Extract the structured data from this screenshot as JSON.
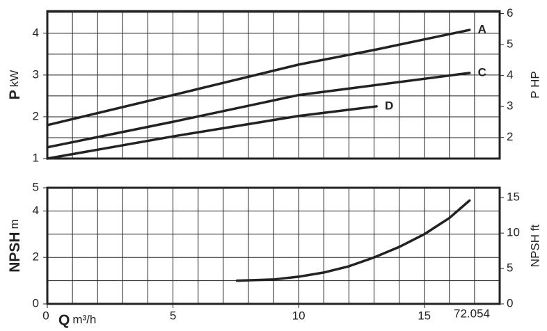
{
  "chart_data": [
    {
      "type": "line",
      "ylabel": {
        "main": "P",
        "unit": "kW"
      },
      "y2label": "P HP",
      "xlim": [
        0,
        18
      ],
      "xgrid": [
        1,
        2,
        3,
        4,
        5,
        6,
        7,
        8,
        9,
        10,
        11,
        12,
        13,
        14,
        15,
        16,
        17
      ],
      "ylim": [
        1,
        4.53
      ],
      "yticks": [
        1,
        2,
        3,
        4
      ],
      "ygrid": [
        1.5,
        2,
        2.5,
        3,
        3.5,
        4,
        4.5
      ],
      "y2lim": [
        1.32,
        6.08
      ],
      "y2ticks": [
        2,
        3,
        4,
        5,
        6
      ],
      "color": "#222222",
      "series": [
        {
          "name": "A",
          "x": [
            0,
            5,
            10,
            13,
            16.8
          ],
          "values": [
            1.8,
            2.52,
            3.25,
            3.6,
            4.08
          ]
        },
        {
          "name": "C",
          "x": [
            0,
            5,
            10,
            16.8
          ],
          "values": [
            1.27,
            1.88,
            2.52,
            3.05
          ]
        },
        {
          "name": "D",
          "x": [
            0,
            5,
            10,
            13.1
          ],
          "values": [
            1.0,
            1.53,
            2.02,
            2.25
          ]
        }
      ]
    },
    {
      "type": "line",
      "ylabel": {
        "main": "NPSH",
        "unit": "m"
      },
      "y2label": "NPSH ft",
      "xlabel": {
        "main": "Q",
        "unit": "m³/h"
      },
      "note": "72.054",
      "xlim": [
        0,
        18
      ],
      "xticks": [
        0,
        5,
        10,
        15
      ],
      "xgrid": [
        1,
        2,
        3,
        4,
        5,
        6,
        7,
        8,
        9,
        10,
        11,
        12,
        13,
        14,
        15,
        16,
        17
      ],
      "ylim": [
        0,
        5
      ],
      "yticks": [
        0,
        2,
        4,
        5
      ],
      "ygrid": [
        1,
        2,
        3,
        4
      ],
      "y2lim": [
        0,
        16.4
      ],
      "y2ticks": [
        0,
        5,
        10,
        15
      ],
      "color": "#222222",
      "series": [
        {
          "x": [
            7.55,
            9,
            10,
            11,
            12,
            13,
            14,
            15,
            16,
            16.8
          ],
          "values": [
            1.0,
            1.05,
            1.17,
            1.35,
            1.62,
            2.0,
            2.45,
            3.0,
            3.7,
            4.45
          ]
        }
      ]
    }
  ]
}
